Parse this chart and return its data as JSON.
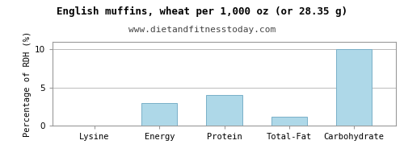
{
  "title": "English muffins, wheat per 1,000 oz (or 28.35 g)",
  "subtitle": "www.dietandfitnesstoday.com",
  "ylabel": "Percentage of RDH (%)",
  "categories": [
    "Lysine",
    "Energy",
    "Protein",
    "Total-Fat",
    "Carbohydrate"
  ],
  "values": [
    0.05,
    3.0,
    4.0,
    1.2,
    10.0
  ],
  "bar_color": "#aed8e8",
  "bar_edge_color": "#7ab0c8",
  "background_color": "#ffffff",
  "plot_bg_color": "#ffffff",
  "grid_color": "#bbbbbb",
  "ylim": [
    0,
    11
  ],
  "yticks": [
    0,
    5,
    10
  ],
  "title_fontsize": 9.0,
  "subtitle_fontsize": 8.0,
  "ylabel_fontsize": 7.5,
  "tick_fontsize": 7.5,
  "bar_width": 0.55,
  "frame_color": "#999999"
}
